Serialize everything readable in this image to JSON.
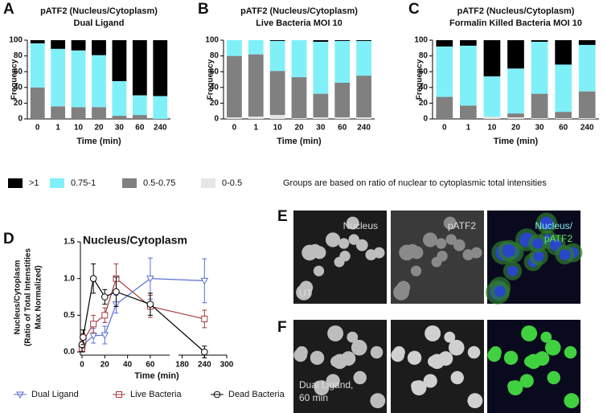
{
  "figure": {
    "panel_labels": [
      "A",
      "B",
      "C",
      "D",
      "E",
      "F"
    ],
    "legend_note": "Groups are based on ratio of nuclear to cytoplasmic total intensities",
    "images": {
      "E": {
        "channels": [
          "Nucleus",
          "pATF2"
        ],
        "merge": [
          "Nucleus/",
          "pATF2"
        ],
        "condition": [
          "UT"
        ]
      },
      "F": {
        "condition": [
          "Dual Ligand,",
          "60 min"
        ]
      }
    }
  },
  "chart_data": [
    {
      "type": "bar",
      "stacked": true,
      "title": "pATF2 (Nucleus/Cytoplasm)",
      "subtitle": "Dual Ligand",
      "x_label": "Time (min)",
      "y_label": "Frequency",
      "categories": [
        "0",
        "1",
        "10",
        "20",
        "30",
        "60",
        "240"
      ],
      "ylim": [
        0,
        100
      ],
      "yticks": [
        0,
        20,
        40,
        60,
        80,
        100
      ],
      "series": [
        {
          "name": "0-0.5",
          "color": "#e6e6e6",
          "values": [
            0,
            0,
            0,
            0,
            0,
            0,
            0
          ]
        },
        {
          "name": "0.5-0.75",
          "color": "#808080",
          "values": [
            40,
            16,
            15,
            15,
            4,
            5,
            0
          ]
        },
        {
          "name": "0.75-1",
          "color": "#80f0f8",
          "values": [
            56,
            73,
            72,
            66,
            44,
            25,
            29
          ]
        },
        {
          "name": ">1",
          "color": "#000000",
          "values": [
            4,
            11,
            13,
            19,
            52,
            70,
            71
          ]
        }
      ]
    },
    {
      "type": "bar",
      "stacked": true,
      "title": "pATF2 (Nucleus/Cytoplasm)",
      "subtitle": "Live Bacteria MOI 10",
      "x_label": "Time (min)",
      "y_label": "Frequency",
      "categories": [
        "0",
        "1",
        "10",
        "20",
        "30",
        "60",
        "240"
      ],
      "ylim": [
        0,
        100
      ],
      "yticks": [
        0,
        20,
        40,
        60,
        80,
        100
      ],
      "series": [
        {
          "name": "0-0.5",
          "color": "#e6e6e6",
          "values": [
            2,
            3,
            5,
            1,
            2,
            2,
            2
          ]
        },
        {
          "name": "0.5-0.75",
          "color": "#808080",
          "values": [
            78,
            79,
            56,
            52,
            30,
            44,
            53
          ]
        },
        {
          "name": "0.75-1",
          "color": "#80f0f8",
          "values": [
            20,
            18,
            38,
            47,
            66,
            53,
            44
          ]
        },
        {
          "name": ">1",
          "color": "#000000",
          "values": [
            0,
            0,
            1,
            0,
            2,
            1,
            1
          ]
        }
      ]
    },
    {
      "type": "bar",
      "stacked": true,
      "title": "pATF2 (Nucleus/Cytoplasm)",
      "subtitle": "Formalin Killed Bacteria MOI 10",
      "x_label": "Time (min)",
      "y_label": "Frequency",
      "categories": [
        "0",
        "1",
        "10",
        "20",
        "30",
        "60",
        "240"
      ],
      "ylim": [
        0,
        100
      ],
      "yticks": [
        0,
        20,
        40,
        60,
        80,
        100
      ],
      "series": [
        {
          "name": "0-0.5",
          "color": "#e6e6e6",
          "values": [
            0,
            0,
            3,
            2,
            1,
            1,
            1
          ]
        },
        {
          "name": "0.5-0.75",
          "color": "#808080",
          "values": [
            28,
            17,
            0,
            5,
            31,
            8,
            34
          ]
        },
        {
          "name": "0.75-1",
          "color": "#80f0f8",
          "values": [
            64,
            76,
            51,
            57,
            66,
            60,
            59
          ]
        },
        {
          "name": ">1",
          "color": "#000000",
          "values": [
            8,
            7,
            46,
            36,
            2,
            31,
            6
          ]
        }
      ]
    },
    {
      "type": "line",
      "title": "Nucleus/Cytoplasm",
      "x_label": "Time (min)",
      "y_label": [
        "Nucleus/Cytoplasm",
        "(Ratio of Total Intenstities",
        "Max Normalized)"
      ],
      "x": [
        0,
        1,
        10,
        20,
        30,
        60,
        240
      ],
      "x_segments": [
        [
          0,
          77
        ],
        [
          170,
          300
        ]
      ],
      "xticks": [
        0,
        20,
        40,
        60,
        180,
        240,
        300
      ],
      "ylim": [
        0,
        1.5
      ],
      "yticks": [
        {
          "value": 0,
          "label": "0.0"
        },
        0.5,
        {
          "value": 1,
          "label": "1.0"
        },
        1.5
      ],
      "series": [
        {
          "name": "Dual Ligand",
          "color": "#5a6fd6",
          "marker": "triangle-down",
          "values": [
            0.05,
            0.1,
            0.22,
            0.23,
            0.65,
            1.0,
            0.97
          ],
          "errors": [
            0.05,
            0.1,
            0.1,
            0.12,
            0.12,
            0.28,
            0.3
          ]
        },
        {
          "name": "Live Bacteria",
          "color": "#a83a3a",
          "marker": "square",
          "values": [
            0.05,
            0.15,
            0.38,
            0.5,
            1.0,
            0.62,
            0.45
          ],
          "errors": [
            0.05,
            0.1,
            0.12,
            0.1,
            0.2,
            0.15,
            0.12
          ]
        },
        {
          "name": "Dead Bacteria",
          "color": "#000000",
          "marker": "circle",
          "values": [
            0.1,
            0.2,
            1.0,
            0.75,
            0.82,
            0.65,
            0.0
          ],
          "errors": [
            0.1,
            0.1,
            0.2,
            0.1,
            0.2,
            0.15,
            0.08
          ]
        }
      ]
    }
  ]
}
